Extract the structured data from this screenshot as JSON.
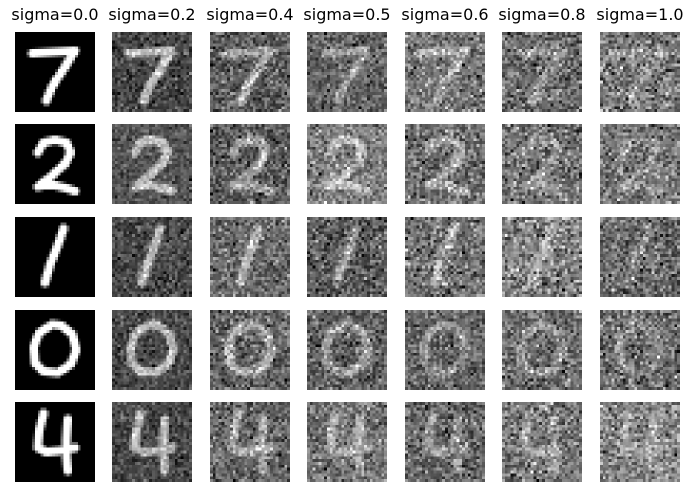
{
  "figure": {
    "columns": [
      {
        "title": "sigma=0.0",
        "sigma": 0.0
      },
      {
        "title": "sigma=0.2",
        "sigma": 0.2
      },
      {
        "title": "sigma=0.4",
        "sigma": 0.4
      },
      {
        "title": "sigma=0.5",
        "sigma": 0.5
      },
      {
        "title": "sigma=0.6",
        "sigma": 0.6
      },
      {
        "title": "sigma=0.8",
        "sigma": 0.8
      },
      {
        "title": "sigma=1.0",
        "sigma": 1.0
      }
    ],
    "rows": [
      {
        "digit": "7"
      },
      {
        "digit": "2"
      },
      {
        "digit": "1"
      },
      {
        "digit": "0"
      },
      {
        "digit": "4"
      }
    ]
  }
}
